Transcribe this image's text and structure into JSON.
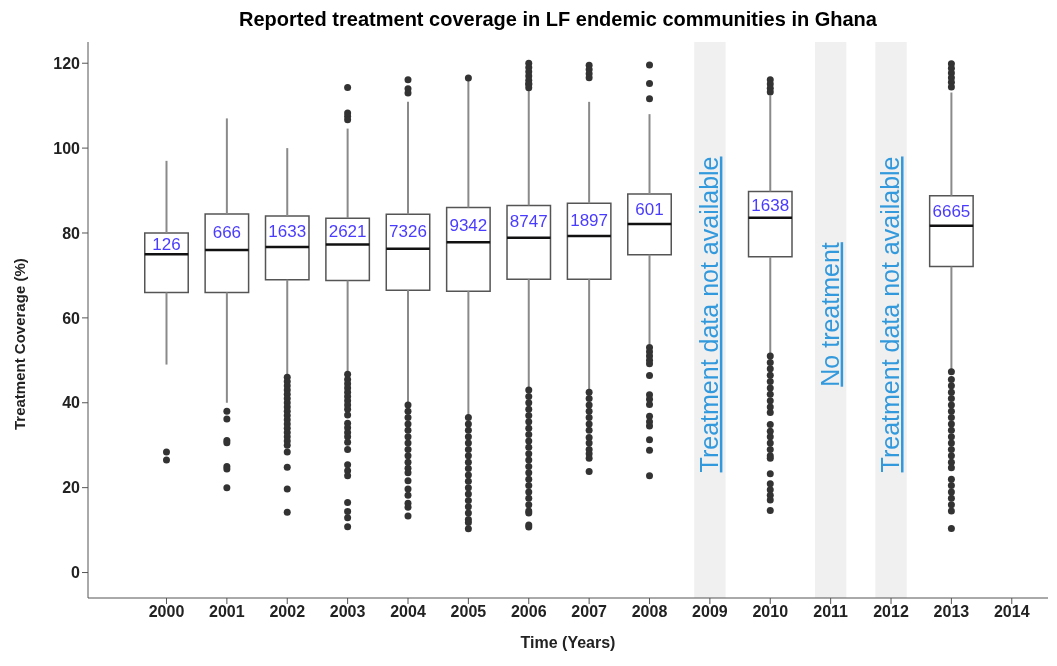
{
  "chart_data": {
    "type": "box",
    "title": "Reported treatment coverage in LF endemic communities in Ghana",
    "xlabel": "Time (Years)",
    "ylabel": "Treatment Coverage (%)",
    "categories": [
      "2000",
      "2001",
      "2002",
      "2003",
      "2004",
      "2005",
      "2006",
      "2007",
      "2008",
      "2009",
      "2010",
      "2011",
      "2012",
      "2013",
      "2014"
    ],
    "boxes": [
      {
        "low": 49,
        "q1": 66,
        "median": 75,
        "q3": 80,
        "high": 97,
        "outliers": [
          28.4,
          26.5
        ]
      },
      {
        "low": 40,
        "q1": 66,
        "median": 76,
        "q3": 84.5,
        "high": 107,
        "outliers": [
          38,
          36.2,
          31.1,
          30.6,
          25,
          24.4,
          20
        ]
      },
      {
        "low": 46.4,
        "q1": 69,
        "median": 76.7,
        "q3": 84,
        "high": 100,
        "outliers": [
          46,
          45,
          44,
          43,
          42,
          41,
          40,
          39,
          38,
          37,
          36,
          35,
          34,
          33,
          32,
          31,
          30,
          28.4,
          24.8,
          19.7,
          14.2
        ]
      },
      {
        "low": 47,
        "q1": 68.8,
        "median": 77.3,
        "q3": 83.5,
        "high": 104.6,
        "outliers": [
          114.3,
          108.3,
          107.5,
          106.7,
          46.7,
          45.5,
          44.5,
          43.5,
          42.5,
          41.5,
          40.5,
          39.5,
          38.5,
          37.1,
          35.2,
          34.1,
          33,
          32,
          30.7,
          29,
          25.4,
          24,
          22.8,
          16.5,
          14.4,
          12.9,
          10.8
        ]
      },
      {
        "low": 39.8,
        "q1": 66.5,
        "median": 76.3,
        "q3": 84.4,
        "high": 110.9,
        "outliers": [
          116.1,
          114,
          113,
          39.5,
          38,
          36.5,
          35,
          33.5,
          32,
          30.5,
          29,
          27.5,
          26,
          24.6,
          23.5,
          21.6,
          19.7,
          18.2,
          16.3,
          15.4,
          13.3
        ]
      },
      {
        "low": 36.6,
        "q1": 66.3,
        "median": 77.8,
        "q3": 86,
        "high": 116,
        "outliers": [
          116.5,
          36.5,
          35,
          33.5,
          32,
          30.5,
          29,
          27.5,
          26,
          24.5,
          23,
          21.5,
          20,
          18.5,
          17,
          15.5,
          14,
          12.5,
          11.8,
          10.3
        ]
      },
      {
        "low": 43.2,
        "q1": 69.1,
        "median": 78.9,
        "q3": 86.5,
        "high": 113.9,
        "outliers": [
          120,
          119,
          118,
          117,
          116,
          115.2,
          115,
          114.2,
          43,
          41.5,
          40,
          38.5,
          37,
          35.5,
          34,
          32.5,
          31,
          29.5,
          28,
          26.5,
          25,
          23.5,
          22,
          20.5,
          19,
          17.5,
          16,
          14.5,
          14,
          11.2,
          10.7
        ]
      },
      {
        "low": 42.9,
        "q1": 69.1,
        "median": 79.3,
        "q3": 87,
        "high": 110.9,
        "outliers": [
          119.5,
          118.5,
          117.5,
          116.6,
          42.5,
          41,
          39.5,
          38,
          36.5,
          35,
          33.5,
          31.8,
          30.5,
          29,
          28,
          26.9,
          23.8
        ]
      },
      {
        "low": 53.8,
        "q1": 74.9,
        "median": 82.1,
        "q3": 89.2,
        "high": 108,
        "outliers": [
          119.6,
          115.2,
          111.6,
          53,
          52,
          51,
          50,
          49.2,
          46.4,
          41.9,
          40.8,
          39.6,
          36.8,
          35.5,
          34.5,
          31.3,
          28.8,
          22.8
        ]
      },
      null,
      {
        "low": 51.5,
        "q1": 74.4,
        "median": 83.6,
        "q3": 89.8,
        "high": 112.4,
        "outliers": [
          116.1,
          115.1,
          114.1,
          113.2,
          51,
          49.5,
          48,
          46.5,
          45,
          43.5,
          42,
          40.5,
          39,
          37.7,
          34.9,
          33.3,
          32,
          30.5,
          29,
          27.5,
          26.9,
          23.3,
          20.9,
          19.5,
          18.2,
          17.1,
          14.6
        ]
      },
      null,
      null,
      {
        "low": 47.7,
        "q1": 72.1,
        "median": 81.7,
        "q3": 88.8,
        "high": 113.1,
        "outliers": [
          119.9,
          118.8,
          117.7,
          116.6,
          115.5,
          114.4,
          47.3,
          45.5,
          44,
          42.5,
          41,
          39.5,
          38,
          36.5,
          35,
          33.5,
          32,
          30.5,
          29,
          27.5,
          26,
          24.7,
          22,
          20.5,
          19,
          17.5,
          16,
          14.5,
          10.4
        ]
      },
      null
    ],
    "ylim": [
      -6,
      125
    ],
    "yticks": [
      0,
      20,
      40,
      60,
      80,
      100,
      120
    ],
    "grid": false,
    "bands": [
      {
        "axis": "x",
        "from": "2009",
        "to": "2009",
        "label": "Treatment data not available",
        "color": "#f0f0f0"
      },
      {
        "axis": "x",
        "from": "2011",
        "to": "2011",
        "label": "No treatment",
        "color": "#f0f0f0"
      },
      {
        "axis": "x",
        "from": "2012",
        "to": "2012",
        "label": "Treatment data not available",
        "color": "#f0f0f0"
      }
    ],
    "annotations": [
      "126",
      "666",
      "1633",
      "2621",
      "7326",
      "9342",
      "8747",
      "1897",
      "601",
      "1638",
      "6665"
    ]
  }
}
